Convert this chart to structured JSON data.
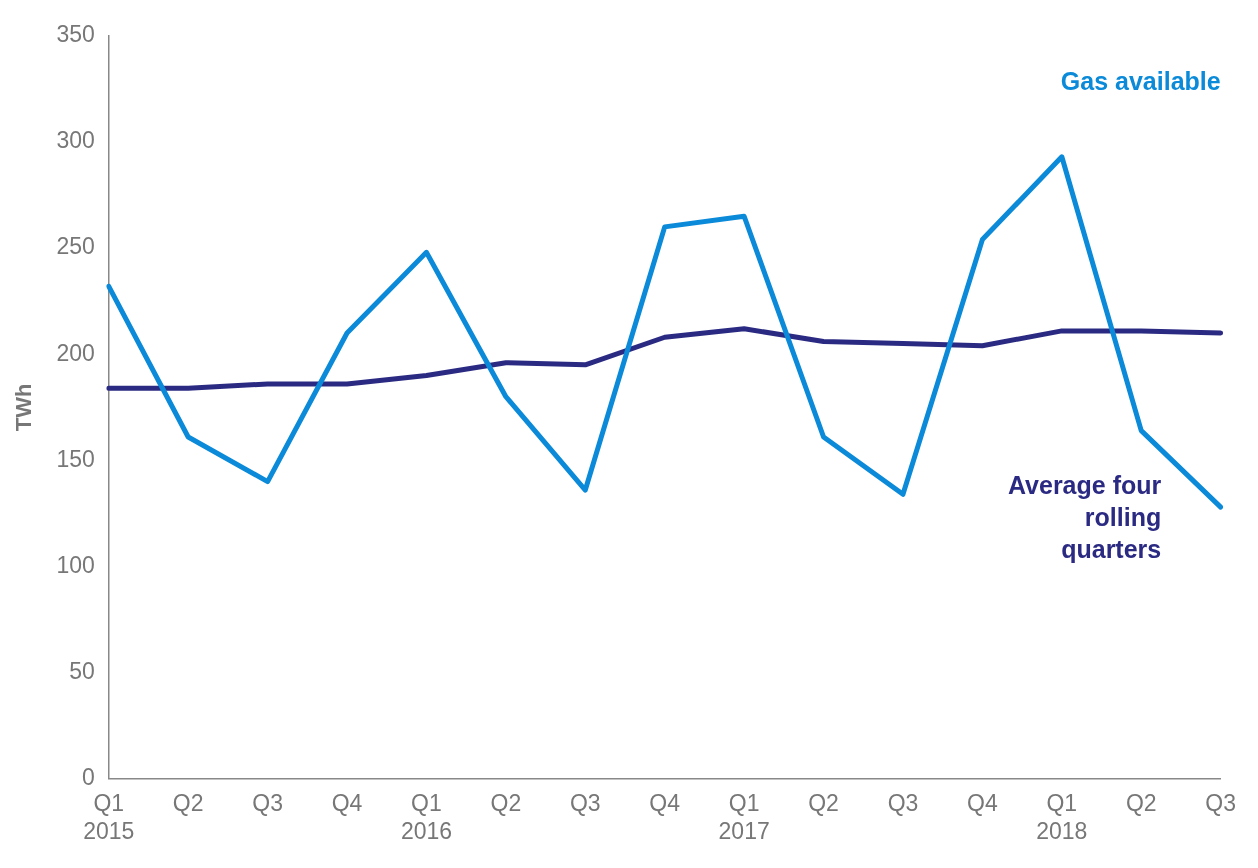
{
  "chart_data": {
    "type": "line",
    "ylabel": "TWh",
    "categories": [
      "Q1\n2015",
      "Q2",
      "Q3",
      "Q4",
      "Q1\n2016",
      "Q2",
      "Q3",
      "Q4",
      "Q1\n2017",
      "Q2",
      "Q3",
      "Q4",
      "Q1\n2018",
      "Q2",
      "Q3"
    ],
    "series": [
      {
        "name": "Gas available",
        "color": "#0a8ad8",
        "values": [
          232,
          161,
          140,
          210,
          248,
          180,
          136,
          260,
          265,
          161,
          134,
          254,
          293,
          164,
          128
        ]
      },
      {
        "name": "Average four rolling quarters",
        "color": "#2b2a83",
        "values": [
          184,
          184,
          186,
          186,
          190,
          196,
          195,
          208,
          212,
          206,
          205,
          204,
          211,
          211,
          210
        ]
      }
    ],
    "ylim": [
      0,
      350
    ],
    "yticks": [
      0,
      50,
      100,
      150,
      200,
      250,
      300,
      350
    ],
    "grid": false,
    "legend": false,
    "marker": "none",
    "line_style": "solid"
  }
}
